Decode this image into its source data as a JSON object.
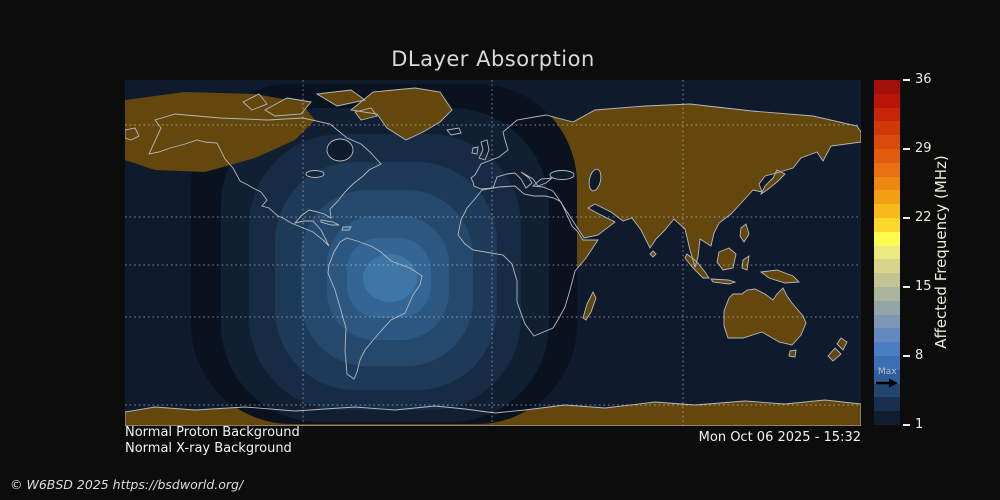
{
  "header": {
    "title": "DLayer Absorption"
  },
  "colorbar": {
    "label": "Affected Frequency (MHz)",
    "ticks": [
      "36",
      "29",
      "22",
      "15",
      "8",
      "1"
    ],
    "max_label": "Max",
    "steps": [
      "#a30f0b",
      "#b81408",
      "#c72408",
      "#d23708",
      "#db4a0b",
      "#e25c0e",
      "#e97010",
      "#ee8812",
      "#f2a115",
      "#f6bb1a",
      "#fad92a",
      "#fdfc4e",
      "#ebea7e",
      "#d6d58b",
      "#c3c492",
      "#abb49c",
      "#94a5aa",
      "#7e97b4",
      "#6489bf",
      "#4b7cc4",
      "#3a70b3",
      "#2e5e97",
      "#23466f",
      "#192f4e",
      "#101c30"
    ]
  },
  "map": {
    "ocean_color": "#0f1a2c",
    "land_color": "#64470c",
    "coastline_color": "#b5b9be",
    "gridline_color": "#dfe3e8",
    "absorption_levels": [
      "#0a1220",
      "#111f33",
      "#172b45",
      "#1e3a59",
      "#25496d",
      "#2c5781",
      "#336694",
      "#3e76a6"
    ]
  },
  "status": {
    "proton": "Normal Proton Background",
    "xray": "Normal X-ray Background"
  },
  "footer": {
    "timestamp": "Mon Oct 06 2025 - 15:32",
    "copyright": "© W6BSD 2025 https://bsdworld.org/"
  },
  "chart_data": {
    "type": "heatmap",
    "title": "DLayer Absorption",
    "projection": "equirectangular world map",
    "colorbar": {
      "label": "Affected Frequency (MHz)",
      "tick_values": [
        36,
        29,
        22,
        15,
        8,
        1
      ],
      "range_mhz": [
        1,
        36
      ],
      "max_marker_mhz": 6,
      "orientation": "vertical-right"
    },
    "gridlines": {
      "latitudes": [
        "Arctic Circle",
        "Tropic of Cancer",
        "Equator",
        "Tropic of Capricorn",
        "Antarctic Circle"
      ],
      "style": "dotted"
    },
    "absorption": "Concentric stepped contours (dark navy ~1 MHz outer to light blue ~6 MHz core) centered over northern South America on the sunlit hemisphere; night side (Europe/Africa/Asia/Australia and polar caps) shows bare land with no absorption overlay",
    "conditions": [
      "Normal Proton Background",
      "Normal X-ray Background"
    ],
    "timestamp": "Mon Oct 06 2025 - 15:32"
  }
}
